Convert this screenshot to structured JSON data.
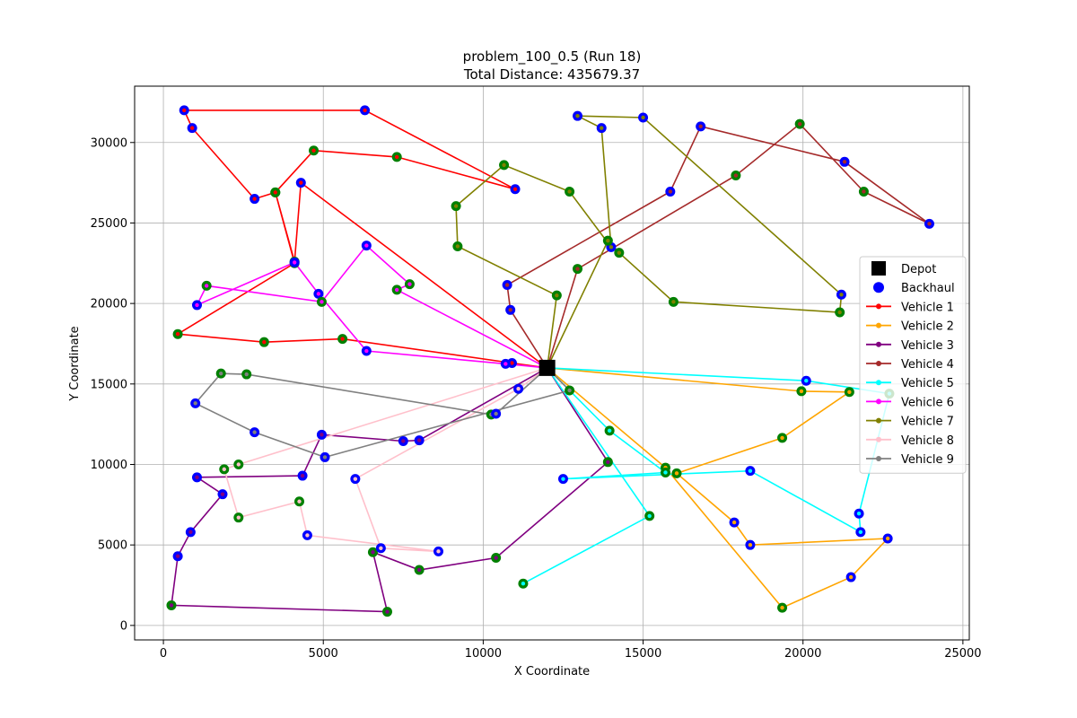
{
  "chart_data": {
    "type": "scatter",
    "title_line1": "problem_100_0.5 (Run 18)",
    "title_line2": "Total Distance: 435679.37",
    "xlabel": "X Coordinate",
    "ylabel": "Y Coordinate",
    "xlim": [
      -900,
      25200
    ],
    "ylim": [
      -900,
      33500
    ],
    "xticks": [
      0,
      5000,
      10000,
      15000,
      20000,
      25000
    ],
    "yticks": [
      0,
      5000,
      10000,
      15000,
      20000,
      25000,
      30000
    ],
    "grid": true,
    "legend_position": "center-right",
    "depot": {
      "label": "Depot",
      "x": 12000,
      "y": 16000,
      "color": "#000000"
    },
    "backhaul_legend": {
      "label": "Backhaul",
      "color": "#0000ff"
    },
    "linehaul_edge_color": "#008000",
    "vehicles": [
      {
        "name": "Vehicle 1",
        "color": "#ff0000",
        "route": [
          {
            "x": 12000,
            "y": 16000,
            "t": "d"
          },
          {
            "x": 10900,
            "y": 16300,
            "t": "b"
          },
          {
            "x": 5600,
            "y": 17800,
            "t": "l"
          },
          {
            "x": 3150,
            "y": 17600,
            "t": "l"
          },
          {
            "x": 450,
            "y": 18100,
            "t": "l"
          },
          {
            "x": 4100,
            "y": 22500,
            "t": "l"
          },
          {
            "x": 3500,
            "y": 26900,
            "t": "l"
          },
          {
            "x": 2850,
            "y": 26500,
            "t": "b"
          },
          {
            "x": 900,
            "y": 30900,
            "t": "b"
          },
          {
            "x": 650,
            "y": 32000,
            "t": "b"
          },
          {
            "x": 6300,
            "y": 32000,
            "t": "b"
          },
          {
            "x": 11000,
            "y": 27100,
            "t": "b"
          },
          {
            "x": 7300,
            "y": 29100,
            "t": "l"
          },
          {
            "x": 4700,
            "y": 29500,
            "t": "l"
          },
          {
            "x": 3500,
            "y": 26900,
            "t": "l"
          },
          {
            "x": 4100,
            "y": 22600,
            "t": "l"
          },
          {
            "x": 4300,
            "y": 27500,
            "t": "b"
          },
          {
            "x": 12000,
            "y": 16000,
            "t": "d"
          }
        ]
      },
      {
        "name": "Vehicle 2",
        "color": "#ffa500",
        "route": [
          {
            "x": 12000,
            "y": 16000,
            "t": "d"
          },
          {
            "x": 19950,
            "y": 14550,
            "t": "l"
          },
          {
            "x": 21450,
            "y": 14500,
            "t": "l"
          },
          {
            "x": 19350,
            "y": 11650,
            "t": "l"
          },
          {
            "x": 16050,
            "y": 9450,
            "t": "l"
          },
          {
            "x": 17850,
            "y": 6400,
            "t": "b"
          },
          {
            "x": 18350,
            "y": 5000,
            "t": "b"
          },
          {
            "x": 22650,
            "y": 5400,
            "t": "b"
          },
          {
            "x": 21500,
            "y": 3000,
            "t": "b"
          },
          {
            "x": 19350,
            "y": 1100,
            "t": "l"
          },
          {
            "x": 15700,
            "y": 9800,
            "t": "l"
          },
          {
            "x": 12000,
            "y": 16000,
            "t": "d"
          }
        ]
      },
      {
        "name": "Vehicle 3",
        "color": "#800080",
        "route": [
          {
            "x": 12000,
            "y": 16000,
            "t": "d"
          },
          {
            "x": 8000,
            "y": 11500,
            "t": "b"
          },
          {
            "x": 7500,
            "y": 11450,
            "t": "b"
          },
          {
            "x": 4950,
            "y": 11850,
            "t": "b"
          },
          {
            "x": 4350,
            "y": 9300,
            "t": "b"
          },
          {
            "x": 1050,
            "y": 9200,
            "t": "b"
          },
          {
            "x": 1850,
            "y": 8150,
            "t": "b"
          },
          {
            "x": 850,
            "y": 5800,
            "t": "b"
          },
          {
            "x": 450,
            "y": 4300,
            "t": "b"
          },
          {
            "x": 250,
            "y": 1250,
            "t": "l"
          },
          {
            "x": 7000,
            "y": 850,
            "t": "l"
          },
          {
            "x": 6550,
            "y": 4550,
            "t": "l"
          },
          {
            "x": 8000,
            "y": 3450,
            "t": "l"
          },
          {
            "x": 10400,
            "y": 4200,
            "t": "l"
          },
          {
            "x": 13900,
            "y": 10150,
            "t": "l"
          },
          {
            "x": 12000,
            "y": 16000,
            "t": "d"
          }
        ]
      },
      {
        "name": "Vehicle 4",
        "color": "#a52a2a",
        "route": [
          {
            "x": 12000,
            "y": 16000,
            "t": "d"
          },
          {
            "x": 10850,
            "y": 19600,
            "t": "b"
          },
          {
            "x": 10750,
            "y": 21150,
            "t": "b"
          },
          {
            "x": 15850,
            "y": 26950,
            "t": "b"
          },
          {
            "x": 16800,
            "y": 31000,
            "t": "b"
          },
          {
            "x": 21300,
            "y": 28800,
            "t": "b"
          },
          {
            "x": 23950,
            "y": 24950,
            "t": "b"
          },
          {
            "x": 21900,
            "y": 26950,
            "t": "l"
          },
          {
            "x": 19900,
            "y": 31150,
            "t": "l"
          },
          {
            "x": 17900,
            "y": 27950,
            "t": "l"
          },
          {
            "x": 12950,
            "y": 22150,
            "t": "l"
          },
          {
            "x": 12000,
            "y": 16000,
            "t": "d"
          }
        ]
      },
      {
        "name": "Vehicle 5",
        "color": "#00ffff",
        "route": [
          {
            "x": 12000,
            "y": 16000,
            "t": "d"
          },
          {
            "x": 20100,
            "y": 15200,
            "t": "b"
          },
          {
            "x": 22700,
            "y": 14400,
            "t": "l"
          },
          {
            "x": 21750,
            "y": 6950,
            "t": "b"
          },
          {
            "x": 21800,
            "y": 5800,
            "t": "b"
          },
          {
            "x": 18350,
            "y": 9600,
            "t": "b"
          },
          {
            "x": 12500,
            "y": 9100,
            "t": "b"
          },
          {
            "x": 15700,
            "y": 9500,
            "t": "l"
          },
          {
            "x": 13950,
            "y": 12100,
            "t": "l"
          },
          {
            "x": 12000,
            "y": 16000,
            "t": "d"
          },
          {
            "x": 15200,
            "y": 6800,
            "t": "l"
          },
          {
            "x": 11250,
            "y": 2600,
            "t": "l"
          }
        ]
      },
      {
        "name": "Vehicle 6",
        "color": "#ff00ff",
        "route": [
          {
            "x": 12000,
            "y": 16000,
            "t": "d"
          },
          {
            "x": 10700,
            "y": 16250,
            "t": "b"
          },
          {
            "x": 6350,
            "y": 17050,
            "t": "b"
          },
          {
            "x": 4850,
            "y": 20600,
            "t": "b"
          },
          {
            "x": 4100,
            "y": 22550,
            "t": "b"
          },
          {
            "x": 1050,
            "y": 19900,
            "t": "b"
          },
          {
            "x": 1350,
            "y": 21100,
            "t": "l"
          },
          {
            "x": 4950,
            "y": 20100,
            "t": "l"
          },
          {
            "x": 6350,
            "y": 23600,
            "t": "b"
          },
          {
            "x": 7700,
            "y": 21200,
            "t": "l"
          },
          {
            "x": 7300,
            "y": 20850,
            "t": "l"
          },
          {
            "x": 12000,
            "y": 16000,
            "t": "d"
          }
        ]
      },
      {
        "name": "Vehicle 7",
        "color": "#808000",
        "route": [
          {
            "x": 12000,
            "y": 16000,
            "t": "d"
          },
          {
            "x": 12300,
            "y": 20500,
            "t": "l"
          },
          {
            "x": 9200,
            "y": 23550,
            "t": "l"
          },
          {
            "x": 9150,
            "y": 26050,
            "t": "l"
          },
          {
            "x": 10650,
            "y": 28600,
            "t": "l"
          },
          {
            "x": 12700,
            "y": 26950,
            "t": "l"
          },
          {
            "x": 14000,
            "y": 23500,
            "t": "b"
          },
          {
            "x": 13700,
            "y": 30900,
            "t": "b"
          },
          {
            "x": 12950,
            "y": 31650,
            "t": "b"
          },
          {
            "x": 15000,
            "y": 31550,
            "t": "b"
          },
          {
            "x": 21200,
            "y": 20550,
            "t": "b"
          },
          {
            "x": 21150,
            "y": 19450,
            "t": "l"
          },
          {
            "x": 15950,
            "y": 20100,
            "t": "l"
          },
          {
            "x": 14250,
            "y": 23150,
            "t": "l"
          },
          {
            "x": 13900,
            "y": 23900,
            "t": "l"
          },
          {
            "x": 12000,
            "y": 16000,
            "t": "d"
          }
        ]
      },
      {
        "name": "Vehicle 8",
        "color": "#ffc0cb",
        "route": [
          {
            "x": 12000,
            "y": 16000,
            "t": "d"
          },
          {
            "x": 11100,
            "y": 14700,
            "t": "b"
          },
          {
            "x": 6000,
            "y": 9100,
            "t": "b"
          },
          {
            "x": 6800,
            "y": 4800,
            "t": "b"
          },
          {
            "x": 8600,
            "y": 4600,
            "t": "b"
          },
          {
            "x": 4500,
            "y": 5600,
            "t": "b"
          },
          {
            "x": 4250,
            "y": 7700,
            "t": "l"
          },
          {
            "x": 2350,
            "y": 6700,
            "t": "l"
          },
          {
            "x": 1900,
            "y": 9700,
            "t": "l"
          },
          {
            "x": 2350,
            "y": 10000,
            "t": "l"
          },
          {
            "x": 12000,
            "y": 16000,
            "t": "d"
          }
        ]
      },
      {
        "name": "Vehicle 9",
        "color": "#808080",
        "route": [
          {
            "x": 12000,
            "y": 16000,
            "t": "d"
          },
          {
            "x": 12700,
            "y": 14600,
            "t": "l"
          },
          {
            "x": 5050,
            "y": 10450,
            "t": "b"
          },
          {
            "x": 2850,
            "y": 12000,
            "t": "b"
          },
          {
            "x": 1000,
            "y": 13800,
            "t": "b"
          },
          {
            "x": 1800,
            "y": 15650,
            "t": "l"
          },
          {
            "x": 2600,
            "y": 15600,
            "t": "l"
          },
          {
            "x": 10250,
            "y": 13100,
            "t": "l"
          },
          {
            "x": 10400,
            "y": 13150,
            "t": "b"
          },
          {
            "x": 12000,
            "y": 16000,
            "t": "d"
          }
        ]
      }
    ]
  }
}
